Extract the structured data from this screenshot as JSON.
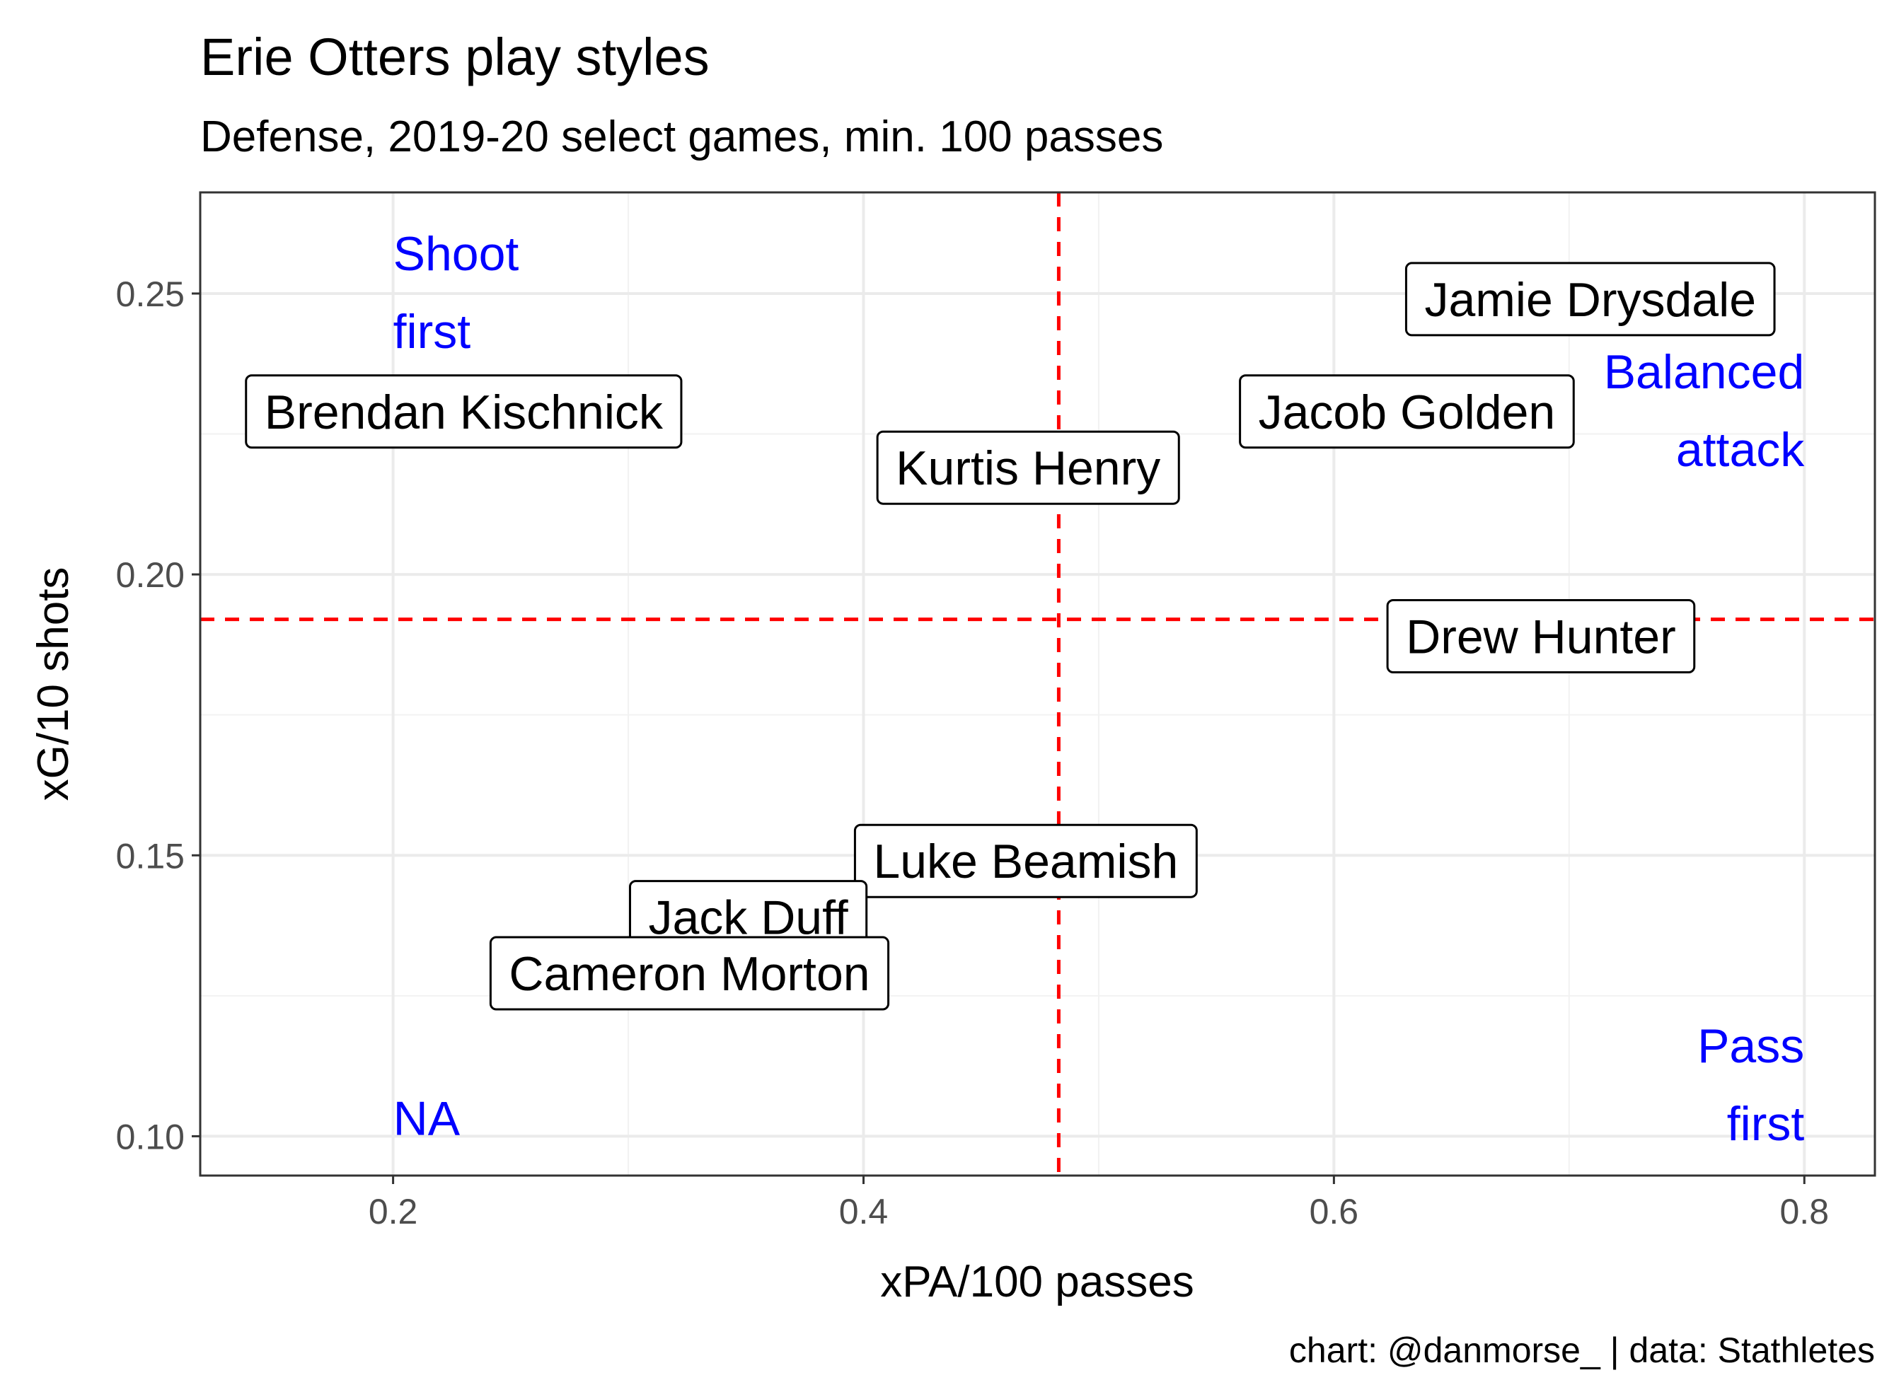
{
  "chart_data": {
    "type": "scatter",
    "title": "Erie Otters play styles",
    "subtitle": "Defense, 2019-20 select games, min. 100 passes",
    "xlabel": "xPA/100 passes",
    "ylabel": "xG/10 shots",
    "caption": "chart: @danmorse_ | data: Stathletes",
    "xlim": [
      0.118,
      0.83
    ],
    "ylim": [
      0.093,
      0.268
    ],
    "x_ticks": [
      {
        "value": 0.2,
        "label": "0.2"
      },
      {
        "value": 0.4,
        "label": "0.4"
      },
      {
        "value": 0.6,
        "label": "0.6"
      },
      {
        "value": 0.8,
        "label": "0.8"
      }
    ],
    "y_ticks": [
      {
        "value": 0.1,
        "label": "0.10"
      },
      {
        "value": 0.15,
        "label": "0.15"
      },
      {
        "value": 0.2,
        "label": "0.20"
      },
      {
        "value": 0.25,
        "label": "0.25"
      }
    ],
    "reference_lines": {
      "x": 0.483,
      "y": 0.192,
      "color": "#ff0000",
      "style": "dashed"
    },
    "points": [
      {
        "name": "Jamie Drysdale",
        "x": 0.709,
        "y": 0.249
      },
      {
        "name": "Brendan Kischnick",
        "x": 0.23,
        "y": 0.229
      },
      {
        "name": "Jacob Golden",
        "x": 0.631,
        "y": 0.229
      },
      {
        "name": "Kurtis Henry",
        "x": 0.47,
        "y": 0.219
      },
      {
        "name": "Drew Hunter",
        "x": 0.688,
        "y": 0.189
      },
      {
        "name": "Luke Beamish",
        "x": 0.469,
        "y": 0.149
      },
      {
        "name": "Jack Duff",
        "x": 0.351,
        "y": 0.139
      },
      {
        "name": "Cameron Morton",
        "x": 0.326,
        "y": 0.129
      }
    ],
    "quadrant_labels": [
      {
        "lines": [
          "Shoot",
          "first"
        ],
        "x": 0.2,
        "y": 0.25,
        "align": "left"
      },
      {
        "lines": [
          "Balanced",
          "attack"
        ],
        "x": 0.8,
        "y": 0.229,
        "align": "right"
      },
      {
        "lines": [
          "Pass",
          "first"
        ],
        "x": 0.8,
        "y": 0.109,
        "align": "right"
      },
      {
        "lines": [
          "NA"
        ],
        "x": 0.2,
        "y": 0.103,
        "align": "left"
      }
    ],
    "quadrant_label_color": "#0000ff",
    "grid": true,
    "legend": "none"
  }
}
